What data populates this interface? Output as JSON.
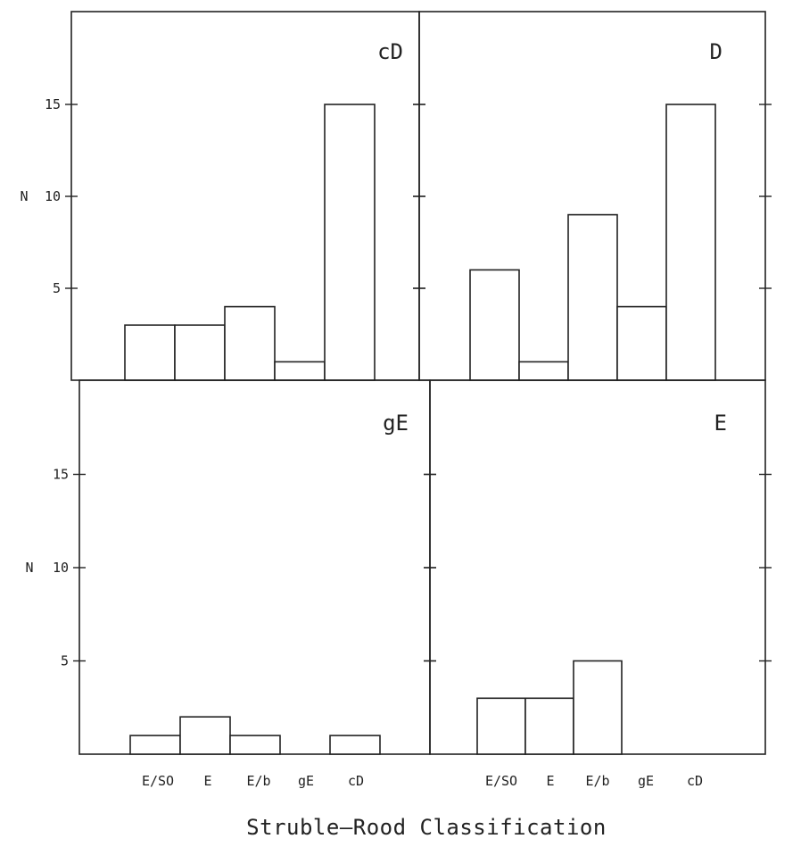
{
  "chart_data": [
    {
      "type": "bar",
      "panel": "top-left",
      "title": "cD",
      "ylabel": "N",
      "categories": [
        "E/SO",
        "E",
        "E/b",
        "gE",
        "cD"
      ],
      "values": [
        3,
        3,
        4,
        1,
        15
      ],
      "ylim": [
        0,
        20
      ],
      "yticks": [
        5,
        10,
        15
      ],
      "show_categories": false
    },
    {
      "type": "bar",
      "panel": "top-right",
      "title": "D",
      "ylabel": "",
      "categories": [
        "E/SO",
        "E",
        "E/b",
        "gE",
        "cD"
      ],
      "values": [
        6,
        1,
        9,
        4,
        15
      ],
      "ylim": [
        0,
        20
      ],
      "yticks": [
        5,
        10,
        15
      ],
      "show_categories": false
    },
    {
      "type": "bar",
      "panel": "bottom-left",
      "title": "gE",
      "ylabel": "N",
      "categories": [
        "E/SO",
        "E",
        "E/b",
        "gE",
        "cD"
      ],
      "values": [
        1,
        2,
        1,
        0,
        1
      ],
      "ylim": [
        0,
        20
      ],
      "yticks": [
        5,
        10,
        15
      ],
      "show_categories": true
    },
    {
      "type": "bar",
      "panel": "bottom-right",
      "title": "E",
      "ylabel": "",
      "categories": [
        "E/SO",
        "E",
        "E/b",
        "gE",
        "cD"
      ],
      "values": [
        3,
        3,
        5,
        0,
        0
      ],
      "ylim": [
        0,
        20
      ],
      "yticks": [
        5,
        10,
        15
      ],
      "show_categories": true
    }
  ],
  "xlabel": "Struble–Rood Classification"
}
